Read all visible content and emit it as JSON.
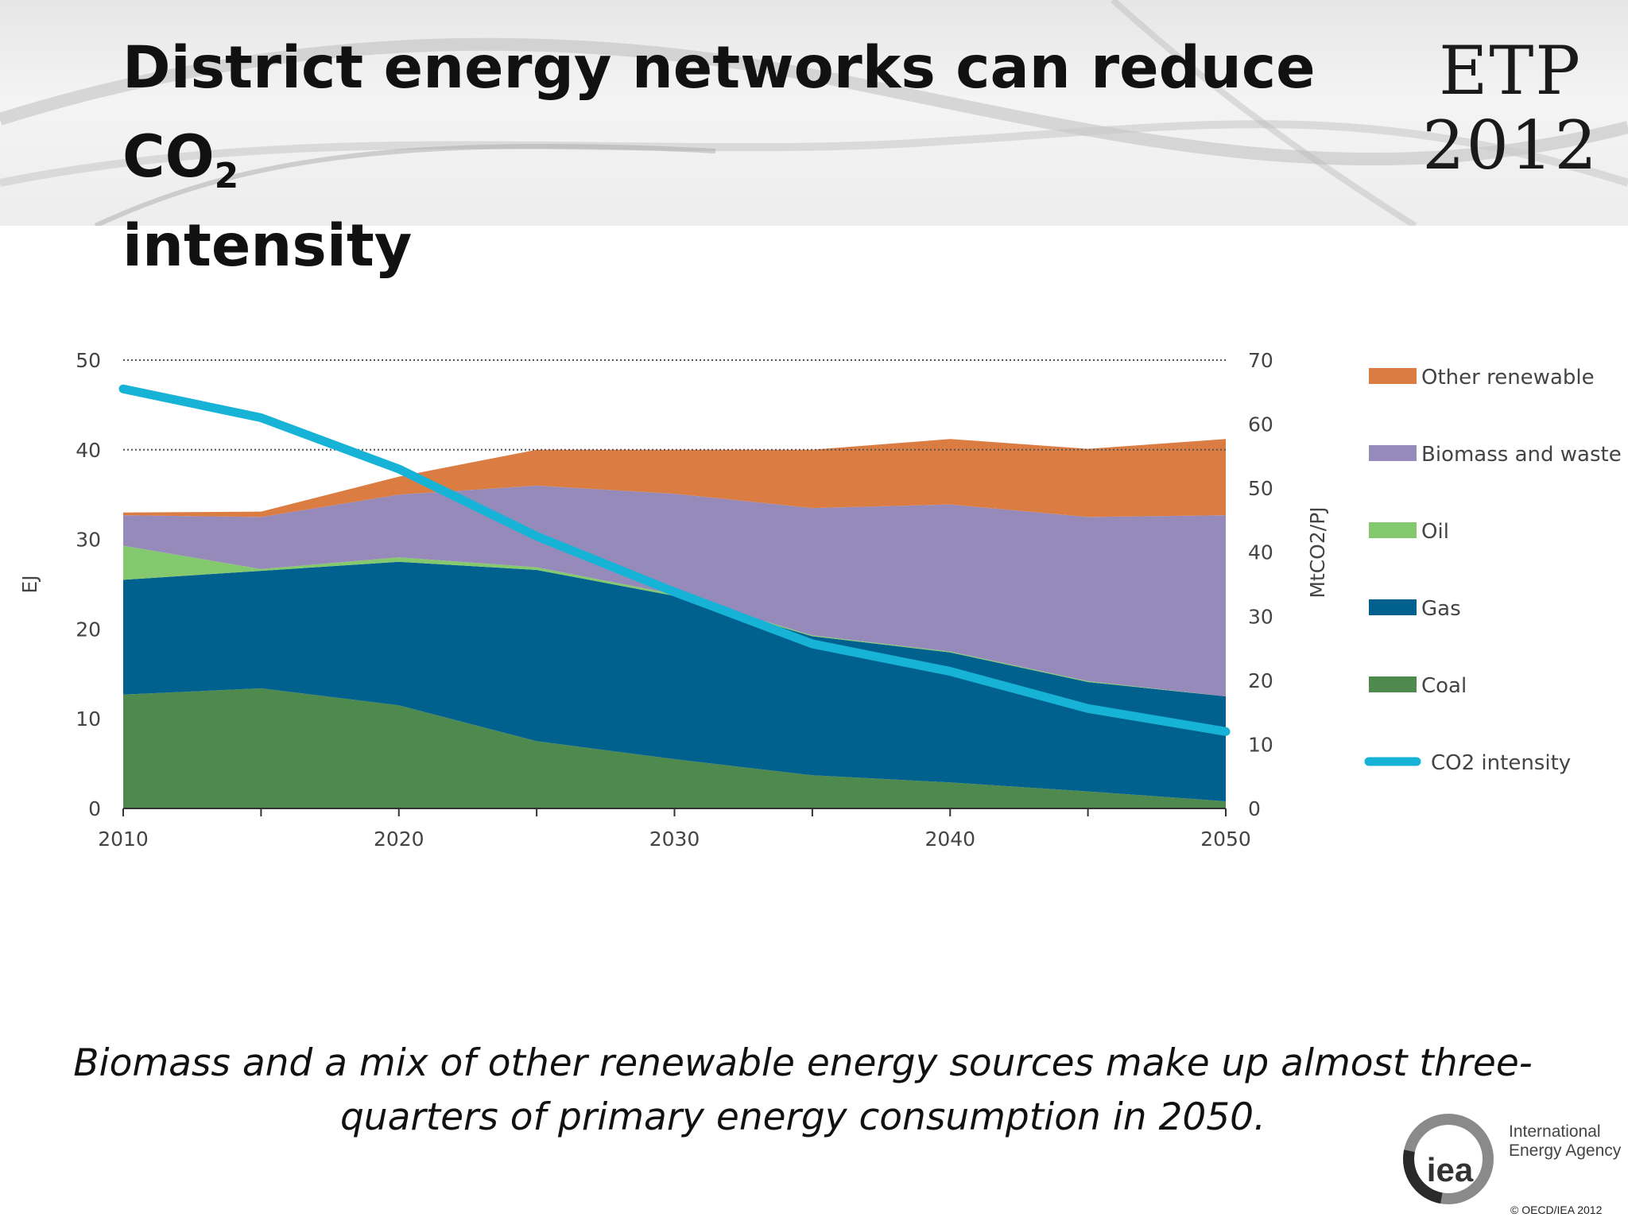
{
  "slide": {
    "title": "District energy networks can reduce CO",
    "title_subscript": "2",
    "title_line2": "intensity",
    "badge_line1": "ETP",
    "badge_line2": "2012",
    "caption": "Biomass and a mix of other renewable energy sources make up almost three-quarters of primary energy consumption in 2050.",
    "logo_text_line1": "International",
    "logo_text_line2": "Energy Agency",
    "logo_mark": "iea",
    "copyright": "© OECD/IEA 2012"
  },
  "chart_data": {
    "type": "area",
    "x": [
      2010,
      2015,
      2020,
      2025,
      2030,
      2035,
      2040,
      2045,
      2050
    ],
    "x_ticks": [
      "2010",
      "2020",
      "2030",
      "2040",
      "2050"
    ],
    "ylabel": "EJ",
    "ylim": [
      0,
      50
    ],
    "y_ticks": [
      "0",
      "10",
      "20",
      "30",
      "40",
      "50"
    ],
    "y2label": "MtCO2/PJ",
    "y2lim": [
      0,
      70
    ],
    "y2_ticks": [
      "0",
      "10",
      "20",
      "30",
      "40",
      "50",
      "60",
      "70"
    ],
    "gridlines": "dotted at 40 and 50 EJ",
    "legend_position": "right",
    "series": [
      {
        "name": "Coal",
        "color": "#4e8a4e",
        "values": [
          12.7,
          13.4,
          11.5,
          7.5,
          5.5,
          3.7,
          2.9,
          1.9,
          0.8
        ]
      },
      {
        "name": "Gas",
        "color": "#00618f",
        "values": [
          12.8,
          13.1,
          16.0,
          19.1,
          18.2,
          15.5,
          14.5,
          12.2,
          11.7
        ]
      },
      {
        "name": "Oil",
        "color": "#85c96f",
        "values": [
          3.8,
          0.2,
          0.5,
          0.3,
          0.2,
          0.1,
          0.1,
          0.1,
          0.0
        ]
      },
      {
        "name": "Biomass and waste",
        "color": "#968aba",
        "values": [
          3.4,
          5.8,
          7.0,
          9.1,
          11.2,
          14.2,
          16.4,
          18.3,
          20.2
        ]
      },
      {
        "name": "Other renewable",
        "color": "#db7c43",
        "values": [
          0.3,
          0.6,
          2.0,
          4.0,
          4.9,
          6.5,
          7.3,
          7.6,
          8.5
        ]
      }
    ],
    "line_series": {
      "name": "CO2 intensity",
      "axis": "right",
      "color": "#17b3d6",
      "values": [
        65.5,
        61.0,
        53.0,
        42.5,
        33.8,
        25.7,
        21.4,
        15.6,
        12.0
      ]
    },
    "legend": [
      {
        "label": "Other renewable",
        "color": "#db7c43"
      },
      {
        "label": "Biomass and waste",
        "color": "#968aba"
      },
      {
        "label": "Oil",
        "color": "#85c96f"
      },
      {
        "label": "Gas",
        "color": "#00618f"
      },
      {
        "label": "Coal",
        "color": "#4e8a4e"
      },
      {
        "label": "CO2 intensity",
        "color": "#17b3d6"
      }
    ]
  }
}
